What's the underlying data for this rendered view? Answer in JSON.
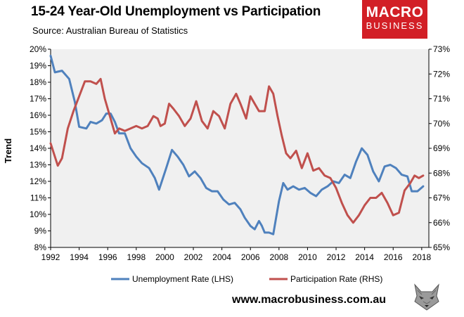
{
  "header": {
    "title": "15-24 Year-Old Unemployment vs Participation",
    "subtitle": "Source: Australian Bureau of Statistics"
  },
  "logo": {
    "line1": "MACRO",
    "line2": "BUSINESS"
  },
  "footer": {
    "url": "www.macrobusiness.com.au"
  },
  "chart_data": {
    "type": "line",
    "ylabel": "Trend",
    "xlim": [
      1992.0,
      2018.5
    ],
    "ylim_left": [
      8,
      20
    ],
    "ylim_right": [
      65,
      73
    ],
    "x_ticks": [
      "1992",
      "1994",
      "1996",
      "1998",
      "2000",
      "2002",
      "2004",
      "2006",
      "2008",
      "2010",
      "2012",
      "2014",
      "2016",
      "2018"
    ],
    "y_ticks_left": [
      "8%",
      "9%",
      "10%",
      "11%",
      "12%",
      "13%",
      "14%",
      "15%",
      "16%",
      "17%",
      "18%",
      "19%",
      "20%"
    ],
    "y_ticks_right": [
      "65%",
      "66%",
      "67%",
      "68%",
      "69%",
      "70%",
      "71%",
      "72%",
      "73%"
    ],
    "legend_position": "bottom",
    "plot_background": "#f0f0f0",
    "series": [
      {
        "name": "Unemployment Rate (LHS)",
        "axis": "left",
        "color": "#4f81bd",
        "points": [
          [
            1992.0,
            19.6
          ],
          [
            1992.3,
            18.6
          ],
          [
            1992.8,
            18.7
          ],
          [
            1993.3,
            18.2
          ],
          [
            1993.7,
            16.8
          ],
          [
            1994.0,
            15.3
          ],
          [
            1994.5,
            15.2
          ],
          [
            1994.8,
            15.6
          ],
          [
            1995.2,
            15.5
          ],
          [
            1995.6,
            15.7
          ],
          [
            1995.9,
            16.1
          ],
          [
            1996.2,
            16.1
          ],
          [
            1996.5,
            15.6
          ],
          [
            1996.8,
            14.9
          ],
          [
            1997.2,
            14.9
          ],
          [
            1997.6,
            14.0
          ],
          [
            1998.0,
            13.5
          ],
          [
            1998.4,
            13.1
          ],
          [
            1998.9,
            12.8
          ],
          [
            1999.3,
            12.2
          ],
          [
            1999.6,
            11.5
          ],
          [
            2000.1,
            12.8
          ],
          [
            2000.5,
            13.9
          ],
          [
            2000.9,
            13.5
          ],
          [
            2001.3,
            13.0
          ],
          [
            2001.7,
            12.3
          ],
          [
            2002.1,
            12.6
          ],
          [
            2002.5,
            12.2
          ],
          [
            2002.9,
            11.6
          ],
          [
            2003.3,
            11.4
          ],
          [
            2003.7,
            11.4
          ],
          [
            2004.1,
            10.9
          ],
          [
            2004.5,
            10.6
          ],
          [
            2004.9,
            10.7
          ],
          [
            2005.3,
            10.3
          ],
          [
            2005.6,
            9.8
          ],
          [
            2006.0,
            9.3
          ],
          [
            2006.3,
            9.1
          ],
          [
            2006.6,
            9.6
          ],
          [
            2006.8,
            9.3
          ],
          [
            2007.0,
            8.9
          ],
          [
            2007.3,
            8.9
          ],
          [
            2007.6,
            8.8
          ],
          [
            2008.0,
            10.8
          ],
          [
            2008.3,
            11.9
          ],
          [
            2008.6,
            11.5
          ],
          [
            2009.0,
            11.7
          ],
          [
            2009.4,
            11.5
          ],
          [
            2009.8,
            11.6
          ],
          [
            2010.2,
            11.3
          ],
          [
            2010.6,
            11.1
          ],
          [
            2011.0,
            11.5
          ],
          [
            2011.4,
            11.7
          ],
          [
            2011.8,
            12.0
          ],
          [
            2012.2,
            11.9
          ],
          [
            2012.6,
            12.4
          ],
          [
            2013.0,
            12.2
          ],
          [
            2013.4,
            13.2
          ],
          [
            2013.8,
            14.0
          ],
          [
            2014.2,
            13.6
          ],
          [
            2014.6,
            12.6
          ],
          [
            2015.0,
            12.0
          ],
          [
            2015.4,
            12.9
          ],
          [
            2015.8,
            13.0
          ],
          [
            2016.2,
            12.8
          ],
          [
            2016.6,
            12.4
          ],
          [
            2017.0,
            12.3
          ],
          [
            2017.3,
            11.4
          ],
          [
            2017.7,
            11.4
          ],
          [
            2018.1,
            11.7
          ]
        ]
      },
      {
        "name": "Participation Rate (RHS)",
        "axis": "right",
        "color": "#c0504d",
        "points": [
          [
            1992.0,
            69.2
          ],
          [
            1992.5,
            68.3
          ],
          [
            1992.8,
            68.6
          ],
          [
            1993.2,
            69.8
          ],
          [
            1993.6,
            70.5
          ],
          [
            1994.0,
            71.1
          ],
          [
            1994.4,
            71.7
          ],
          [
            1994.8,
            71.7
          ],
          [
            1995.2,
            71.6
          ],
          [
            1995.5,
            71.8
          ],
          [
            1995.8,
            71.0
          ],
          [
            1996.2,
            70.2
          ],
          [
            1996.5,
            69.6
          ],
          [
            1996.8,
            69.8
          ],
          [
            1997.2,
            69.7
          ],
          [
            1997.6,
            69.8
          ],
          [
            1998.0,
            69.9
          ],
          [
            1998.4,
            69.8
          ],
          [
            1998.8,
            69.9
          ],
          [
            1999.2,
            70.3
          ],
          [
            1999.5,
            70.2
          ],
          [
            1999.7,
            69.9
          ],
          [
            2000.0,
            70.0
          ],
          [
            2000.3,
            70.8
          ],
          [
            2000.6,
            70.6
          ],
          [
            2001.0,
            70.3
          ],
          [
            2001.4,
            69.9
          ],
          [
            2001.8,
            70.2
          ],
          [
            2002.2,
            70.9
          ],
          [
            2002.6,
            70.1
          ],
          [
            2003.0,
            69.8
          ],
          [
            2003.4,
            70.5
          ],
          [
            2003.8,
            70.3
          ],
          [
            2004.2,
            69.8
          ],
          [
            2004.6,
            70.8
          ],
          [
            2005.0,
            71.2
          ],
          [
            2005.3,
            70.8
          ],
          [
            2005.7,
            70.2
          ],
          [
            2006.0,
            71.1
          ],
          [
            2006.3,
            70.8
          ],
          [
            2006.6,
            70.5
          ],
          [
            2007.0,
            70.5
          ],
          [
            2007.3,
            71.5
          ],
          [
            2007.6,
            71.2
          ],
          [
            2007.9,
            70.3
          ],
          [
            2008.2,
            69.5
          ],
          [
            2008.5,
            68.8
          ],
          [
            2008.8,
            68.6
          ],
          [
            2009.2,
            68.9
          ],
          [
            2009.6,
            68.2
          ],
          [
            2010.0,
            68.8
          ],
          [
            2010.4,
            68.1
          ],
          [
            2010.8,
            68.2
          ],
          [
            2011.2,
            67.9
          ],
          [
            2011.6,
            67.8
          ],
          [
            2012.0,
            67.4
          ],
          [
            2012.4,
            66.8
          ],
          [
            2012.8,
            66.3
          ],
          [
            2013.2,
            66.0
          ],
          [
            2013.6,
            66.3
          ],
          [
            2014.0,
            66.7
          ],
          [
            2014.4,
            67.0
          ],
          [
            2014.8,
            67.0
          ],
          [
            2015.2,
            67.2
          ],
          [
            2015.6,
            66.8
          ],
          [
            2016.0,
            66.3
          ],
          [
            2016.4,
            66.4
          ],
          [
            2016.8,
            67.3
          ],
          [
            2017.2,
            67.6
          ],
          [
            2017.5,
            67.9
          ],
          [
            2017.8,
            67.8
          ],
          [
            2018.1,
            67.9
          ]
        ]
      }
    ]
  }
}
